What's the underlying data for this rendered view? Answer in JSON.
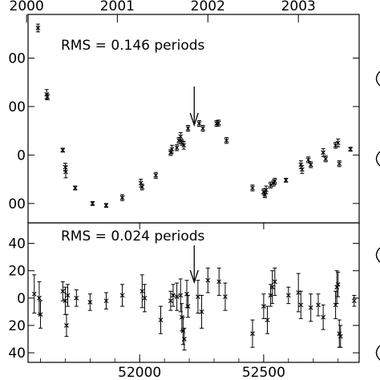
{
  "chart_data": [
    {
      "type": "scatter",
      "panel": "top",
      "annotation": "RMS = 0.146 periods",
      "top_axis_ticks": [
        "2000",
        "2001",
        "2002",
        "2003"
      ],
      "top_axis_values": [
        51544,
        51910,
        52275,
        52640
      ],
      "y_tick_labels": [
        "00",
        "00",
        "0",
        "00"
      ],
      "y_tick_values": [
        200,
        100,
        0,
        -100
      ],
      "xlim": [
        51550,
        52885
      ],
      "ylim": [
        -140,
        290
      ],
      "grid": false,
      "marker": "x with error bars",
      "arrow_at_x": 52220,
      "points": [
        {
          "x": 51590,
          "y": 262,
          "e": 8
        },
        {
          "x": 51625,
          "y": 125,
          "e": 10
        },
        {
          "x": 51628,
          "y": 120,
          "e": 6
        },
        {
          "x": 51690,
          "y": 10,
          "e": 4
        },
        {
          "x": 51700,
          "y": -25,
          "e": 8
        },
        {
          "x": 51702,
          "y": -35,
          "e": 12
        },
        {
          "x": 51740,
          "y": -68,
          "e": 4
        },
        {
          "x": 51810,
          "y": -100,
          "e": 4
        },
        {
          "x": 51865,
          "y": -104,
          "e": 4
        },
        {
          "x": 51930,
          "y": -88,
          "e": 6
        },
        {
          "x": 52005,
          "y": -58,
          "e": 8
        },
        {
          "x": 52010,
          "y": -66,
          "e": 6
        },
        {
          "x": 52065,
          "y": -42,
          "e": 6
        },
        {
          "x": 52125,
          "y": 5,
          "e": 6
        },
        {
          "x": 52130,
          "y": 12,
          "e": 8
        },
        {
          "x": 52150,
          "y": 15,
          "e": 6
        },
        {
          "x": 52158,
          "y": 30,
          "e": 6
        },
        {
          "x": 52165,
          "y": 38,
          "e": 8
        },
        {
          "x": 52170,
          "y": 26,
          "e": 6
        },
        {
          "x": 52178,
          "y": 20,
          "e": 8
        },
        {
          "x": 52195,
          "y": 55,
          "e": 6
        },
        {
          "x": 52240,
          "y": 65,
          "e": 6
        },
        {
          "x": 52255,
          "y": 55,
          "e": 6
        },
        {
          "x": 52310,
          "y": 65,
          "e": 6
        },
        {
          "x": 52318,
          "y": 66,
          "e": 6
        },
        {
          "x": 52350,
          "y": 30,
          "e": 6
        },
        {
          "x": 52455,
          "y": -68,
          "e": 6
        },
        {
          "x": 52500,
          "y": -76,
          "e": 6
        },
        {
          "x": 52505,
          "y": -82,
          "e": 6
        },
        {
          "x": 52510,
          "y": -72,
          "e": 8
        },
        {
          "x": 52528,
          "y": -62,
          "e": 6
        },
        {
          "x": 52540,
          "y": -58,
          "e": 6
        },
        {
          "x": 52545,
          "y": -54,
          "e": 6
        },
        {
          "x": 52590,
          "y": -52,
          "e": 4
        },
        {
          "x": 52650,
          "y": -20,
          "e": 8
        },
        {
          "x": 52655,
          "y": -30,
          "e": 8
        },
        {
          "x": 52680,
          "y": -10,
          "e": 6
        },
        {
          "x": 52690,
          "y": -20,
          "e": 6
        },
        {
          "x": 52740,
          "y": 5,
          "e": 8
        },
        {
          "x": 52750,
          "y": -8,
          "e": 6
        },
        {
          "x": 52790,
          "y": 20,
          "e": 6
        },
        {
          "x": 52800,
          "y": 25,
          "e": 8
        },
        {
          "x": 52805,
          "y": -18,
          "e": 6
        },
        {
          "x": 52850,
          "y": 12,
          "e": 4
        }
      ]
    },
    {
      "type": "scatter",
      "panel": "bottom",
      "annotation": "RMS = 0.024 periods",
      "x_tick_labels": [
        "52000",
        "52500"
      ],
      "x_tick_values": [
        52000,
        52500
      ],
      "y_tick_labels": [
        "40",
        "20",
        "0",
        "20",
        "40"
      ],
      "y_tick_values": [
        40,
        20,
        0,
        -20,
        -40
      ],
      "xlim": [
        51550,
        52885
      ],
      "ylim": [
        -47,
        55
      ],
      "grid": false,
      "marker": "x with error bars",
      "arrow_at_x": 52220,
      "points": [
        {
          "x": 51575,
          "y": 3,
          "e": 14
        },
        {
          "x": 51595,
          "y": 0,
          "e": 12
        },
        {
          "x": 51600,
          "y": -12,
          "e": 10
        },
        {
          "x": 51690,
          "y": 5,
          "e": 7
        },
        {
          "x": 51700,
          "y": -2,
          "e": 10
        },
        {
          "x": 51705,
          "y": -20,
          "e": 8
        },
        {
          "x": 51710,
          "y": 2,
          "e": 8
        },
        {
          "x": 51745,
          "y": 0,
          "e": 6
        },
        {
          "x": 51800,
          "y": -3,
          "e": 6
        },
        {
          "x": 51865,
          "y": -2,
          "e": 6
        },
        {
          "x": 51930,
          "y": 2,
          "e": 8
        },
        {
          "x": 52010,
          "y": 5,
          "e": 12
        },
        {
          "x": 52020,
          "y": 0,
          "e": 10
        },
        {
          "x": 52085,
          "y": -16,
          "e": 10
        },
        {
          "x": 52125,
          "y": -2,
          "e": 7
        },
        {
          "x": 52135,
          "y": 2,
          "e": 8
        },
        {
          "x": 52150,
          "y": 1,
          "e": 10
        },
        {
          "x": 52165,
          "y": 2,
          "e": 12
        },
        {
          "x": 52170,
          "y": -14,
          "e": 10
        },
        {
          "x": 52175,
          "y": -24,
          "e": 10
        },
        {
          "x": 52180,
          "y": -30,
          "e": 8
        },
        {
          "x": 52190,
          "y": 3,
          "e": 10
        },
        {
          "x": 52195,
          "y": -6,
          "e": 8
        },
        {
          "x": 52235,
          "y": 1,
          "e": 12
        },
        {
          "x": 52250,
          "y": -10,
          "e": 12
        },
        {
          "x": 52275,
          "y": 13,
          "e": 9
        },
        {
          "x": 52320,
          "y": 12,
          "e": 10
        },
        {
          "x": 52345,
          "y": 1,
          "e": 10
        },
        {
          "x": 52455,
          "y": -26,
          "e": 10
        },
        {
          "x": 52500,
          "y": -6,
          "e": 9
        },
        {
          "x": 52515,
          "y": -16,
          "e": 10
        },
        {
          "x": 52528,
          "y": 2,
          "e": 8
        },
        {
          "x": 52535,
          "y": 8,
          "e": 12
        },
        {
          "x": 52545,
          "y": 12,
          "e": 10
        },
        {
          "x": 52600,
          "y": 2,
          "e": 6
        },
        {
          "x": 52640,
          "y": 4,
          "e": 14
        },
        {
          "x": 52650,
          "y": -5,
          "e": 10
        },
        {
          "x": 52690,
          "y": -7,
          "e": 10
        },
        {
          "x": 52720,
          "y": -5,
          "e": 8
        },
        {
          "x": 52740,
          "y": -14,
          "e": 9
        },
        {
          "x": 52790,
          "y": -5,
          "e": 10
        },
        {
          "x": 52795,
          "y": 8,
          "e": 12
        },
        {
          "x": 52800,
          "y": 10,
          "e": 9
        },
        {
          "x": 52805,
          "y": -26,
          "e": 10
        },
        {
          "x": 52810,
          "y": -28,
          "e": 8
        },
        {
          "x": 52865,
          "y": -2,
          "e": 4
        }
      ]
    }
  ]
}
